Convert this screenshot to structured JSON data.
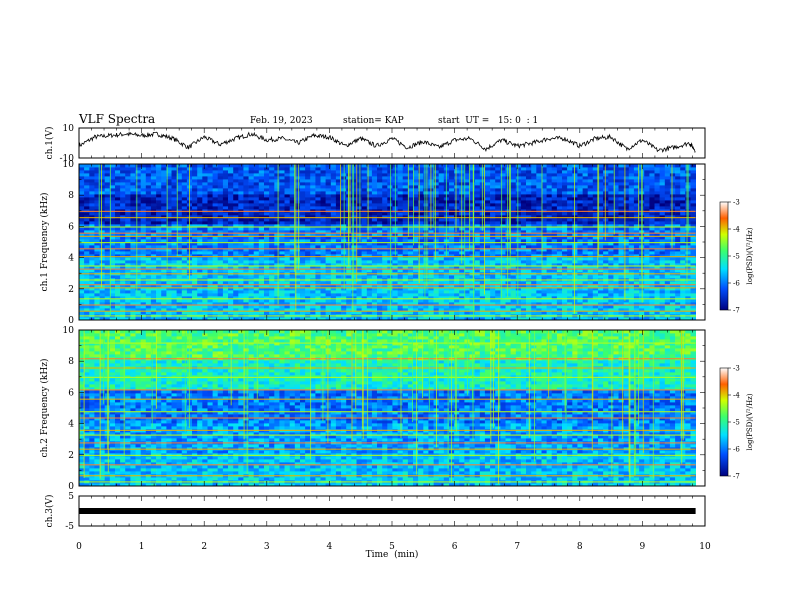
{
  "header": {
    "title": "VLF Spectra",
    "date": "Feb. 19, 2023",
    "station": "station= KAP",
    "start": "start  UT =   15: 0  : 1"
  },
  "chart_data": [
    {
      "type": "line",
      "name": "ch1-waveform",
      "ylabel": "ch.1(V)",
      "ylim": [
        -10,
        10
      ],
      "yticks": [
        "10",
        "-10"
      ],
      "xlim": [
        0,
        10
      ],
      "x": [
        0,
        0.25,
        0.5,
        0.75,
        1.0,
        1.25,
        1.5,
        1.75,
        2.0,
        2.25,
        2.5,
        2.75,
        3.0,
        3.25,
        3.5,
        3.75,
        4.0,
        4.25,
        4.5,
        4.75,
        5.0,
        5.25,
        5.5,
        5.75,
        6.0,
        6.25,
        6.5,
        6.75,
        7.0,
        7.25,
        7.5,
        7.75,
        8.0,
        8.25,
        8.5,
        8.75,
        9.0,
        9.25,
        9.5,
        9.75,
        9.85
      ],
      "y": [
        -2,
        4,
        5,
        6,
        5,
        6,
        3,
        -3,
        4,
        -1,
        3,
        6,
        2,
        3,
        0,
        5,
        4,
        -2,
        3,
        -2,
        3,
        -3,
        1,
        -3,
        2,
        3,
        -4,
        2,
        -2,
        0,
        3,
        3,
        -2,
        3,
        4,
        -4,
        2,
        -5,
        -3,
        0,
        -5
      ]
    },
    {
      "type": "heatmap",
      "name": "ch1-spectrogram",
      "ylabel": "ch.1 Frequency (kHz)",
      "ylim": [
        0,
        10
      ],
      "yticks": [
        "0",
        "2",
        "4",
        "6",
        "8",
        "10"
      ],
      "xlim": [
        0,
        10
      ],
      "colorbar": {
        "label": "log(PSD)(V²/Hz)",
        "range": [
          -7,
          -3
        ],
        "ticks": [
          "-3",
          "-4",
          "-5",
          "-6",
          "-7"
        ]
      },
      "lines_khz": [
        0.3,
        0.6,
        1.0,
        1.4,
        2.1,
        2.3,
        2.6,
        3.0,
        3.3,
        3.5,
        4.1,
        4.6,
        5.0,
        5.4,
        5.6,
        6.0,
        6.6,
        7.0
      ],
      "levels_by_band": [
        {
          "from_khz": 0,
          "to_khz": 2,
          "log_psd": -5.6
        },
        {
          "from_khz": 2,
          "to_khz": 4,
          "log_psd": -5.6
        },
        {
          "from_khz": 4,
          "to_khz": 6,
          "log_psd": -6.0
        },
        {
          "from_khz": 6,
          "to_khz": 8,
          "log_psd": -6.6
        },
        {
          "from_khz": 8,
          "to_khz": 10,
          "log_psd": -6.2
        }
      ]
    },
    {
      "type": "heatmap",
      "name": "ch2-spectrogram",
      "ylabel": "ch.2 Frequency (kHz)",
      "ylim": [
        0,
        10
      ],
      "yticks": [
        "0",
        "2",
        "4",
        "6",
        "8",
        "10"
      ],
      "xlim": [
        0,
        10
      ],
      "colorbar": {
        "label": "log(PSD)(V²/Hz)",
        "range": [
          -7,
          -3
        ],
        "ticks": [
          "-3",
          "-4",
          "-5",
          "-6",
          "-7"
        ]
      },
      "lines_khz": [
        0.3,
        0.7,
        1.4,
        2.0,
        2.4,
        2.8,
        3.3,
        3.6,
        4.4,
        4.8,
        5.6,
        6.2,
        7.0,
        7.6,
        8.2,
        9.2
      ],
      "levels_by_band": [
        {
          "from_khz": 0,
          "to_khz": 2,
          "log_psd": -5.6
        },
        {
          "from_khz": 2,
          "to_khz": 4,
          "log_psd": -5.8
        },
        {
          "from_khz": 4,
          "to_khz": 6,
          "log_psd": -6.0
        },
        {
          "from_khz": 6,
          "to_khz": 8,
          "log_psd": -5.2
        },
        {
          "from_khz": 8,
          "to_khz": 10,
          "log_psd": -4.8
        }
      ]
    },
    {
      "type": "line",
      "name": "ch3-waveform",
      "ylabel": "ch.3(V)",
      "ylim": [
        -5,
        5
      ],
      "yticks": [
        "5",
        "-5"
      ],
      "xlim": [
        0,
        10
      ],
      "x": [
        0,
        9.85
      ],
      "y": [
        0,
        0
      ],
      "xlabel": "Time  (min)",
      "xticks": [
        "0",
        "1",
        "2",
        "3",
        "4",
        "5",
        "6",
        "7",
        "8",
        "9",
        "10"
      ]
    }
  ]
}
